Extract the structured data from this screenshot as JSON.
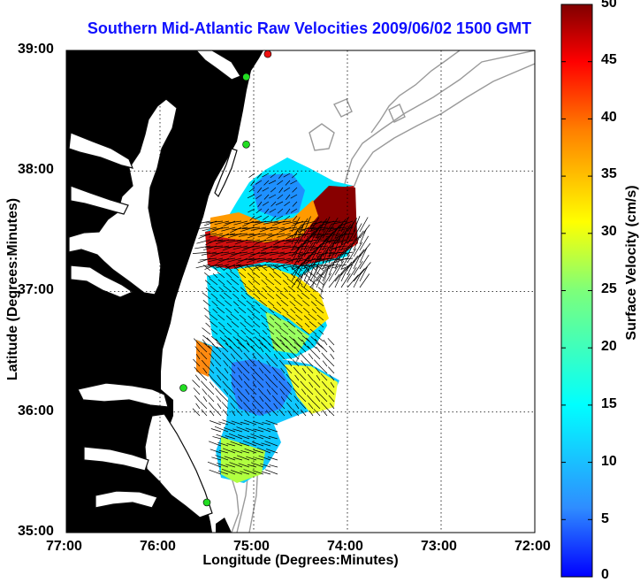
{
  "title": "Southern Mid-Atlantic Raw Velocities 2009/06/02 1500 GMT",
  "xlabel": "Longitude (Degrees:Minutes)",
  "ylabel": "Latitude (Degrees:Minutes)",
  "colorbar_label": "Surface Velocity (cm/s)",
  "x_ticks": [
    "77:00",
    "76:00",
    "75:00",
    "74:00",
    "73:00",
    "72:00"
  ],
  "y_ticks": [
    "39:00",
    "38:00",
    "37:00",
    "36:00",
    "35:00"
  ],
  "colorbar_ticks": [
    "0",
    "5",
    "10",
    "15",
    "20",
    "25",
    "30",
    "35",
    "40",
    "45",
    "50"
  ],
  "colors": {
    "land": "#55f5a6",
    "coast": "#0a0a0a",
    "bathymetry": "#9a9a9a",
    "station_green": "#22dd22",
    "station_red": "#ee1111",
    "title": "#1010ff"
  },
  "chart_data": {
    "type": "heatmap",
    "subtype": "surface current vector map",
    "x_range_deg_W": [
      77,
      72
    ],
    "y_range_deg_N": [
      35,
      39
    ],
    "colorbar_range": [
      0,
      50
    ],
    "colormap": "jet",
    "grid": true,
    "stations": [
      {
        "lon_W": 74.85,
        "lat_N": 38.97,
        "color": "red"
      },
      {
        "lon_W": 75.08,
        "lat_N": 38.78,
        "color": "green"
      },
      {
        "lon_W": 75.08,
        "lat_N": 38.22,
        "color": "green"
      },
      {
        "lon_W": 75.75,
        "lat_N": 36.2,
        "color": "green"
      },
      {
        "lon_W": 75.5,
        "lat_N": 35.25,
        "color": "green"
      }
    ]
  }
}
